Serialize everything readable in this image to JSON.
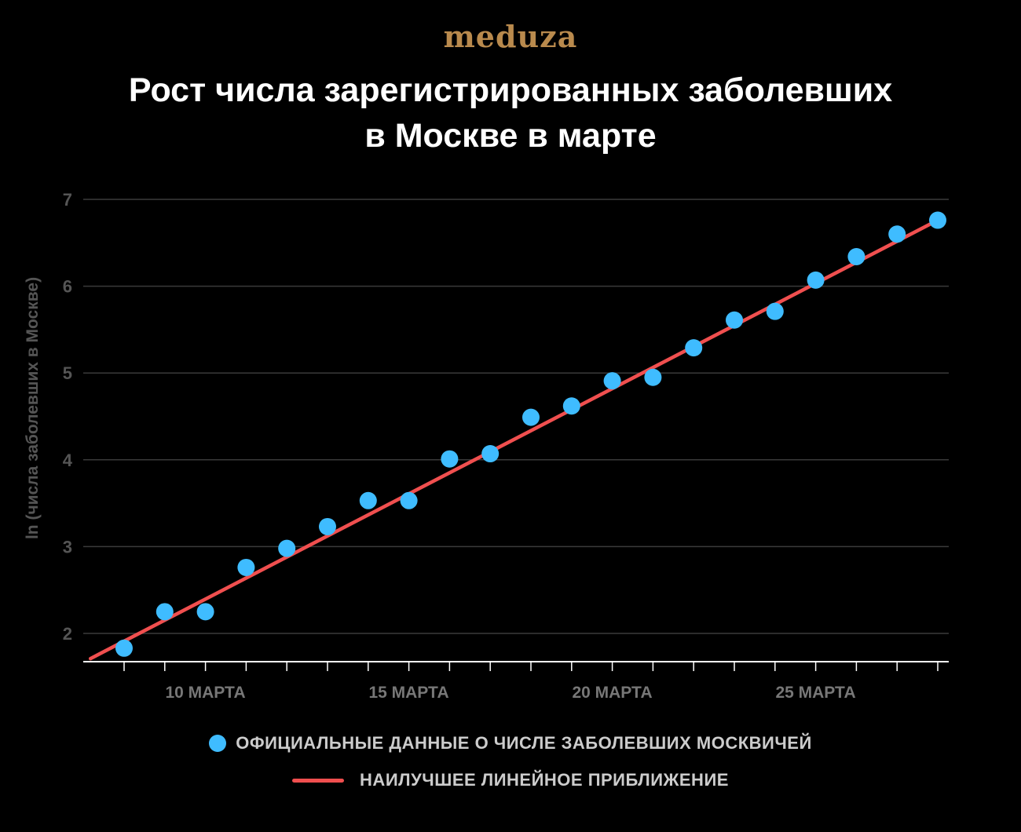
{
  "logo": {
    "text": "meduza"
  },
  "title": {
    "line1": "Рост числа зарегистрированных заболевших",
    "line2": "в Москве в марте"
  },
  "colors": {
    "background": "#000000",
    "logo": "#b98a4d",
    "points": "#3fbcff",
    "fit_line": "#f04f4f",
    "grid": "#3a3a3a",
    "axis": "#ffffff",
    "tick_label": "#555555",
    "x_tick_label": "#777777",
    "legend_text": "#cccccc"
  },
  "legend": {
    "points_label": "ОФИЦИАЛЬНЫЕ ДАННЫЕ О ЧИСЛЕ ЗАБОЛЕВШИХ МОСКВИЧЕЙ",
    "line_label": "НАИЛУЧШЕЕ ЛИНЕЙНОЕ ПРИБЛИЖЕНИЕ"
  },
  "chart_data": {
    "type": "scatter",
    "ylabel": "ln (числа заболевших в Москве)",
    "xlabel": "",
    "xlim": [
      7,
      28
    ],
    "ylim": [
      1.7,
      7
    ],
    "y_ticks": [
      2,
      3,
      4,
      5,
      6,
      7
    ],
    "x_ticks": [
      8,
      9,
      10,
      11,
      12,
      13,
      14,
      15,
      16,
      17,
      18,
      19,
      20,
      21,
      22,
      23,
      24,
      25,
      26,
      27,
      28
    ],
    "x_tick_labels": [
      {
        "x": 10,
        "label": "10 МАРТА"
      },
      {
        "x": 15,
        "label": "15 МАРТА"
      },
      {
        "x": 20,
        "label": "20 МАРТА"
      },
      {
        "x": 25,
        "label": "25 МАРТА"
      }
    ],
    "series": [
      {
        "name": "ОФИЦИАЛЬНЫЕ ДАННЫЕ О ЧИСЛЕ ЗАБОЛЕВШИХ МОСКВИЧЕЙ",
        "type": "scatter",
        "x": [
          8,
          9,
          10,
          11,
          12,
          13,
          14,
          15,
          16,
          17,
          18,
          19,
          20,
          21,
          22,
          23,
          24,
          25,
          26,
          27,
          28
        ],
        "y": [
          1.83,
          2.25,
          2.25,
          2.76,
          2.98,
          3.23,
          3.53,
          3.53,
          4.01,
          4.07,
          4.49,
          4.62,
          4.91,
          4.95,
          5.29,
          5.61,
          5.71,
          6.07,
          6.34,
          6.6,
          6.76
        ]
      },
      {
        "name": "НАИЛУЧШЕЕ ЛИНЕЙНОЕ ПРИБЛИЖЕНИЕ",
        "type": "line",
        "x": [
          7,
          28
        ],
        "y": [
          1.71,
          6.76
        ]
      }
    ],
    "grid": true
  }
}
